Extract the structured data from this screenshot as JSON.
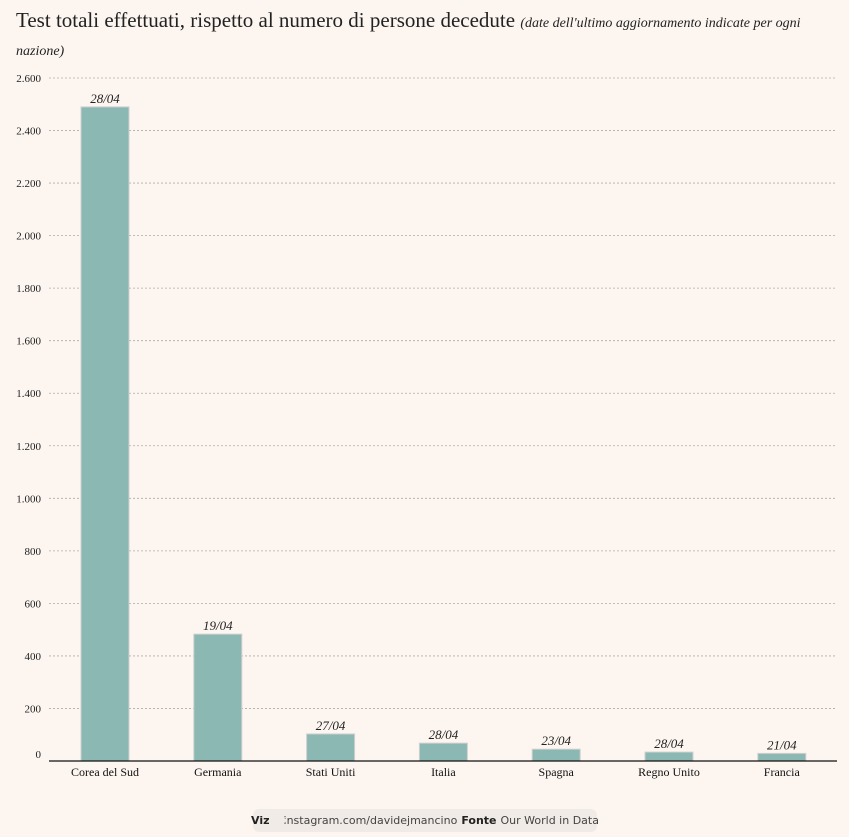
{
  "chart_data": {
    "type": "bar",
    "title": "Test totali effettuati, rispetto al numero di persone decedute",
    "subtitle": "(date dell'ultimo aggiornamento indicate per ogni nazione)",
    "xlabel": "",
    "ylabel": "",
    "ylim": [
      0,
      2600
    ],
    "yticks": [
      0,
      200,
      400,
      600,
      800,
      1000,
      1200,
      1400,
      1600,
      1800,
      2000,
      2200,
      2400,
      2600
    ],
    "ytick_labels": [
      "0",
      "200",
      "400",
      "600",
      "800",
      "1.000",
      "1.200",
      "1.400",
      "1.600",
      "1.800",
      "2.000",
      "2.200",
      "2.400",
      "2.600"
    ],
    "grid": true,
    "categories": [
      "Corea del Sud",
      "Germania",
      "Stati Uniti",
      "Italia",
      "Spagna",
      "Regno Unito",
      "Francia"
    ],
    "values": [
      2490,
      483,
      103,
      68,
      45,
      34,
      29
    ],
    "data_labels": [
      "28/04",
      "19/04",
      "27/04",
      "28/04",
      "23/04",
      "28/04",
      "21/04"
    ],
    "bar_color": "#8bb8b3"
  },
  "footer": {
    "viz_label": "Viz",
    "viz_icon": "camera-icon",
    "viz_value": "instagram.com/davidejmancino",
    "source_label": "Fonte",
    "source_value": "Our World in Data"
  }
}
